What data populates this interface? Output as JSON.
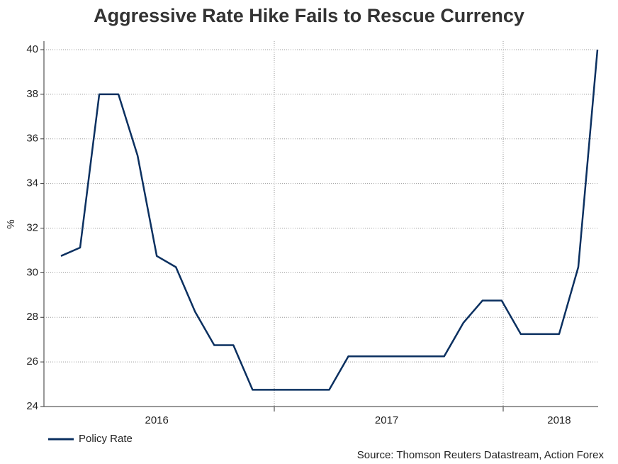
{
  "chart_data": {
    "type": "line",
    "title": "Aggressive Rate Hike Fails to Rescue Currency",
    "y_label": "%",
    "source": "Source: Thomson Reuters Datastream, Action Forex",
    "categories": [
      null,
      null,
      null,
      null,
      null,
      "2016",
      null,
      null,
      null,
      null,
      null,
      null,
      null,
      null,
      null,
      null,
      null,
      "2017",
      null,
      null,
      null,
      null,
      null,
      null,
      null,
      null,
      "2018",
      null,
      null
    ],
    "series": [
      {
        "name": "Policy Rate",
        "color": "#0b3060",
        "values": [
          30.75,
          31.125,
          38,
          38,
          35.25,
          30.75,
          30.25,
          28.25,
          26.75,
          26.75,
          24.75,
          24.75,
          24.75,
          24.75,
          24.75,
          26.25,
          26.25,
          26.25,
          26.25,
          26.25,
          26.25,
          27.75,
          28.75,
          28.75,
          27.25,
          27.25,
          27.25,
          30.25,
          40
        ]
      }
    ],
    "ylim": [
      24,
      40
    ],
    "yticks": [
      24,
      26,
      28,
      30,
      32,
      34,
      36,
      38,
      40
    ],
    "grid": true,
    "legend": "bottom-left"
  }
}
